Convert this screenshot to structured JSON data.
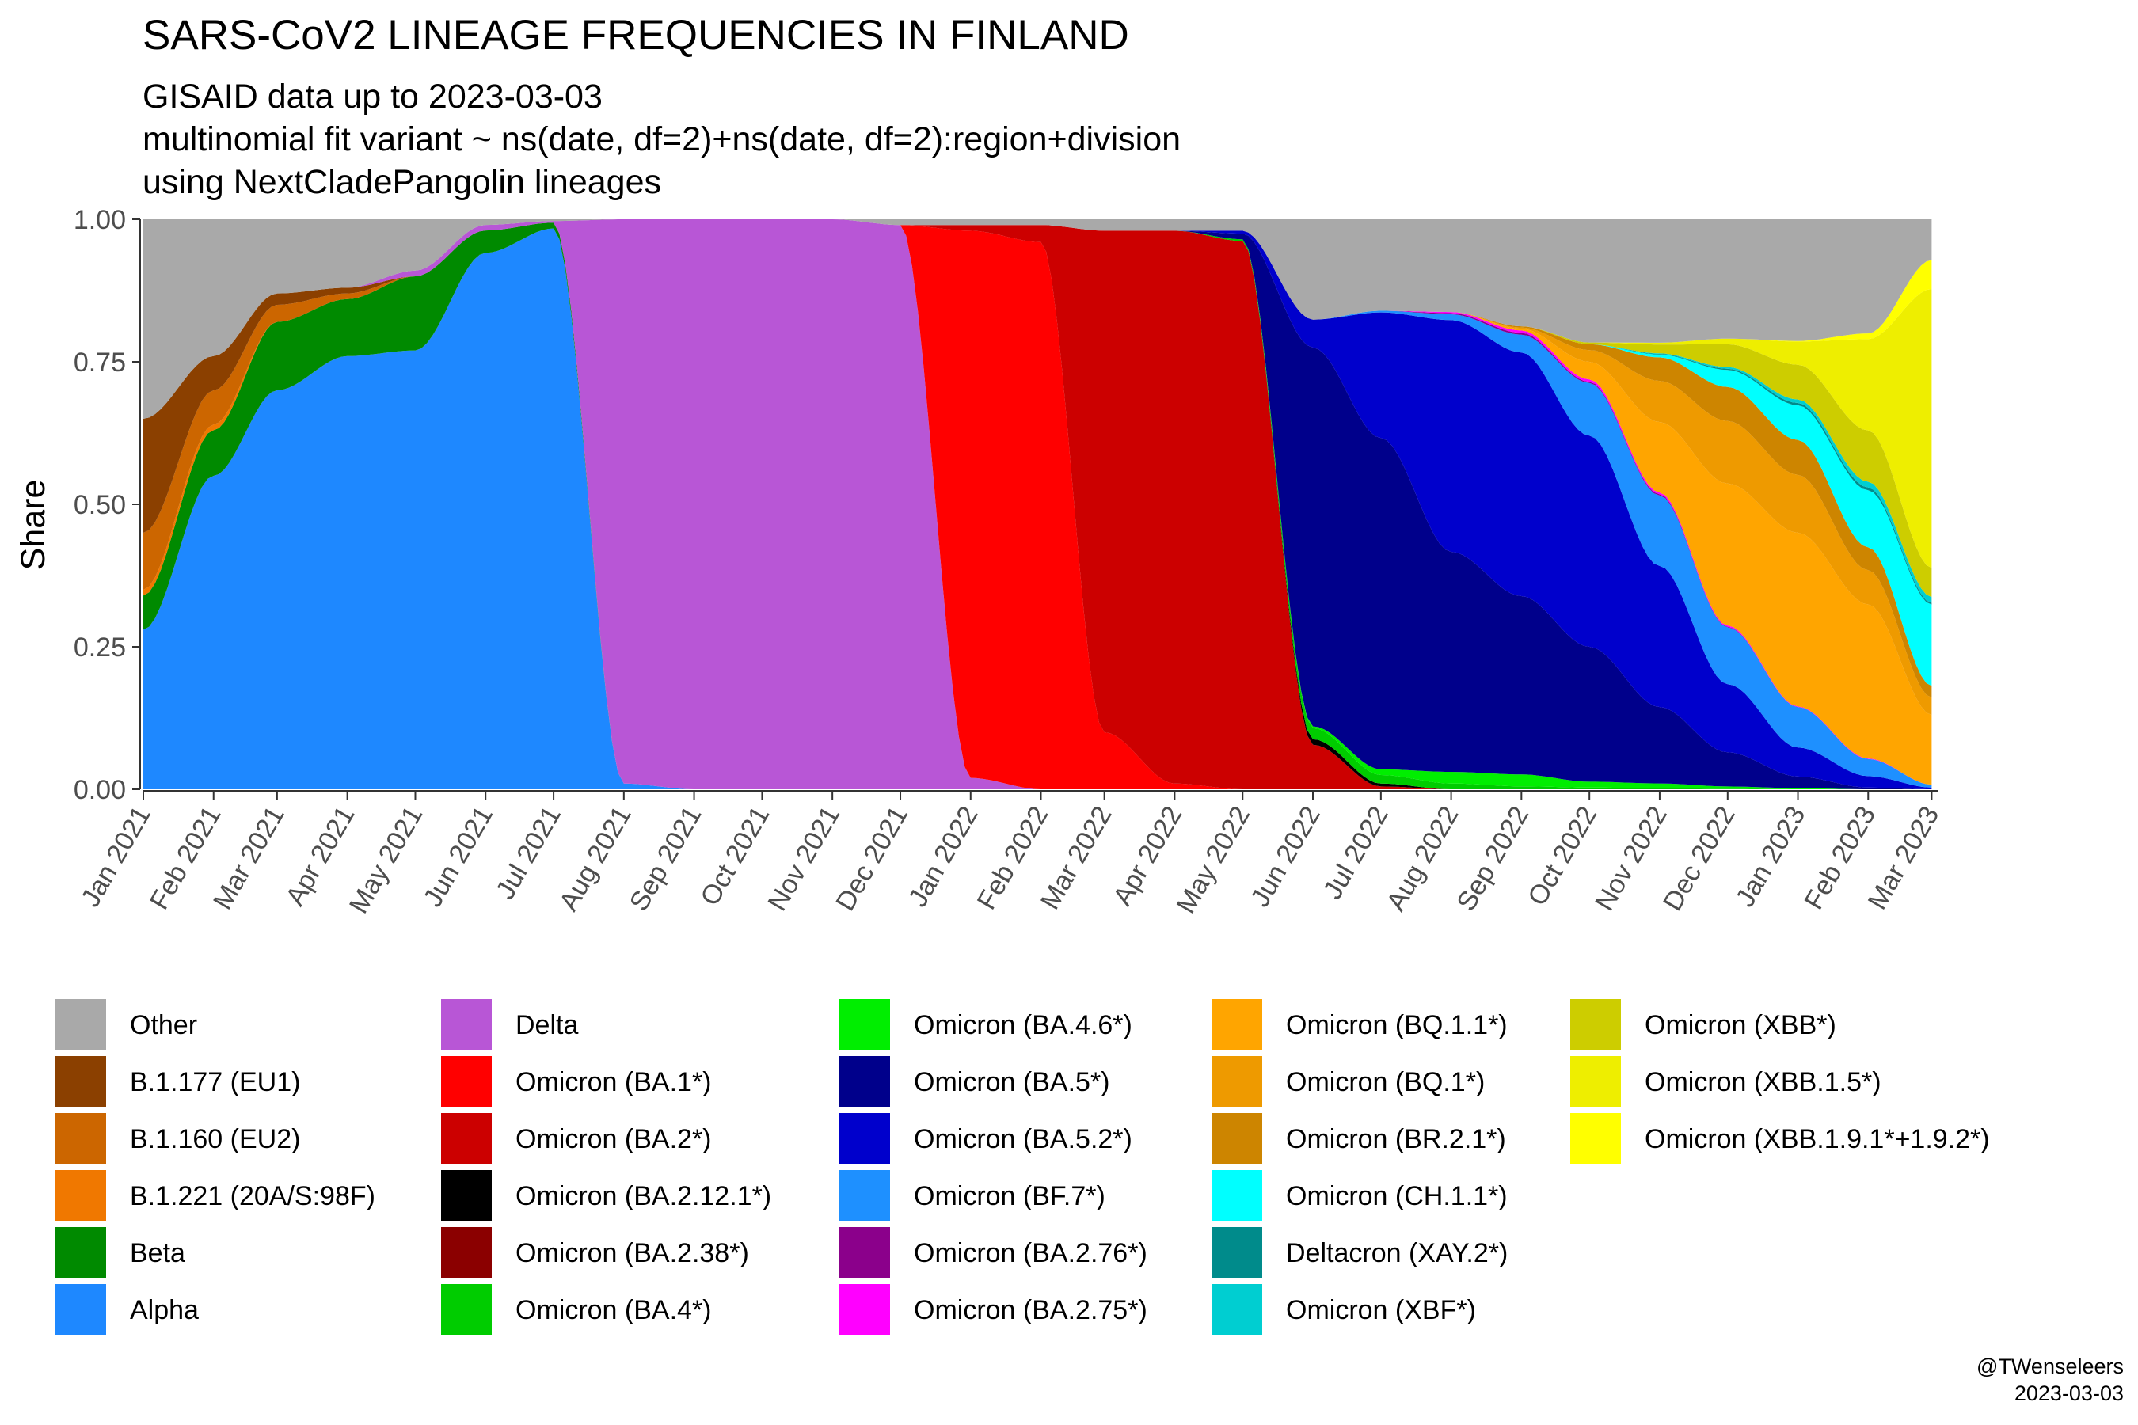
{
  "title": "SARS-CoV2 LINEAGE FREQUENCIES IN FINLAND",
  "subtitle": [
    "GISAID data up to 2023-03-03",
    "multinomial fit variant ~ ns(date, df=2)+ns(date, df=2):region+division",
    "using NextCladePangolin lineages"
  ],
  "caption": [
    "@TWenseleers",
    "2023-03-03"
  ],
  "chart_data": {
    "type": "area",
    "stacked": true,
    "ylabel": "Share",
    "xlabel": "",
    "ylim": [
      0,
      1
    ],
    "yticks": [
      "0.00",
      "0.25",
      "0.50",
      "0.75",
      "1.00"
    ],
    "xlim": [
      "2021-01-01",
      "2023-03-04"
    ],
    "xticks": [
      {
        "date": "2021-01-01",
        "label": "Jan 2021"
      },
      {
        "date": "2021-02-01",
        "label": "Feb 2021"
      },
      {
        "date": "2021-03-01",
        "label": "Mar 2021"
      },
      {
        "date": "2021-04-01",
        "label": "Apr 2021"
      },
      {
        "date": "2021-05-01",
        "label": "May 2021"
      },
      {
        "date": "2021-06-01",
        "label": "Jun 2021"
      },
      {
        "date": "2021-07-01",
        "label": "Jul 2021"
      },
      {
        "date": "2021-08-01",
        "label": "Aug 2021"
      },
      {
        "date": "2021-09-01",
        "label": "Sep 2021"
      },
      {
        "date": "2021-10-01",
        "label": "Oct 2021"
      },
      {
        "date": "2021-11-01",
        "label": "Nov 2021"
      },
      {
        "date": "2021-12-01",
        "label": "Dec 2021"
      },
      {
        "date": "2022-01-01",
        "label": "Jan 2022"
      },
      {
        "date": "2022-02-01",
        "label": "Feb 2022"
      },
      {
        "date": "2022-03-01",
        "label": "Mar 2022"
      },
      {
        "date": "2022-04-01",
        "label": "Apr 2022"
      },
      {
        "date": "2022-05-01",
        "label": "May 2022"
      },
      {
        "date": "2022-06-01",
        "label": "Jun 2022"
      },
      {
        "date": "2022-07-01",
        "label": "Jul 2022"
      },
      {
        "date": "2022-08-01",
        "label": "Aug 2022"
      },
      {
        "date": "2022-09-01",
        "label": "Sep 2022"
      },
      {
        "date": "2022-10-01",
        "label": "Oct 2022"
      },
      {
        "date": "2022-11-01",
        "label": "Nov 2022"
      },
      {
        "date": "2022-12-01",
        "label": "Dec 2022"
      },
      {
        "date": "2023-01-01",
        "label": "Jan 2023"
      },
      {
        "date": "2023-02-01",
        "label": "Feb 2023"
      },
      {
        "date": "2023-03-01",
        "label": "Mar 2023"
      }
    ],
    "x": [
      "2021-01-01",
      "2021-02-01",
      "2021-03-01",
      "2021-04-01",
      "2021-05-01",
      "2021-06-01",
      "2021-07-01",
      "2021-08-01",
      "2021-09-01",
      "2021-10-01",
      "2021-11-01",
      "2021-12-01",
      "2022-01-01",
      "2022-02-01",
      "2022-03-01",
      "2022-04-01",
      "2022-05-01",
      "2022-06-01",
      "2022-07-01",
      "2022-08-01",
      "2022-09-01",
      "2022-10-01",
      "2022-11-01",
      "2022-12-01",
      "2023-01-01",
      "2023-02-01",
      "2023-03-01"
    ],
    "series": [
      {
        "name": "Alpha",
        "color": "#1E88FF",
        "values": [
          0.28,
          0.55,
          0.7,
          0.76,
          0.77,
          0.96,
          0.99,
          0.01,
          0,
          0,
          0,
          0,
          0,
          0,
          0,
          0,
          0,
          0,
          0,
          0,
          0,
          0,
          0,
          0,
          0,
          0,
          0
        ]
      },
      {
        "name": "Beta",
        "color": "#008A00",
        "values": [
          0.06,
          0.08,
          0.12,
          0.1,
          0.13,
          0.04,
          0.01,
          0,
          0,
          0,
          0,
          0,
          0,
          0,
          0,
          0,
          0,
          0,
          0,
          0,
          0,
          0,
          0,
          0,
          0,
          0,
          0
        ]
      },
      {
        "name": "B.1.221 (20A/S:98F)",
        "color": "#F07800",
        "values": [
          0.01,
          0.01,
          0,
          0,
          0,
          0,
          0,
          0,
          0,
          0,
          0,
          0,
          0,
          0,
          0,
          0,
          0,
          0,
          0,
          0,
          0,
          0,
          0,
          0,
          0,
          0,
          0
        ]
      },
      {
        "name": "B.1.160 (EU2)",
        "color": "#CC6600",
        "values": [
          0.1,
          0.06,
          0.03,
          0.01,
          0,
          0,
          0,
          0,
          0,
          0,
          0,
          0,
          0,
          0,
          0,
          0,
          0,
          0,
          0,
          0,
          0,
          0,
          0,
          0,
          0,
          0,
          0
        ]
      },
      {
        "name": "B.1.177 (EU1)",
        "color": "#8B4000",
        "values": [
          0.2,
          0.06,
          0.02,
          0.01,
          0,
          0,
          0,
          0,
          0,
          0,
          0,
          0,
          0,
          0,
          0,
          0,
          0,
          0,
          0,
          0,
          0,
          0,
          0,
          0,
          0,
          0,
          0
        ]
      },
      {
        "name": "Delta",
        "color": "#B856D6",
        "values": [
          0,
          0,
          0,
          0,
          0.01,
          0.01,
          0.003,
          0.99,
          1.0,
          1.0,
          1.0,
          0.99,
          0.02,
          0,
          0,
          0,
          0,
          0,
          0,
          0,
          0,
          0,
          0,
          0,
          0,
          0,
          0
        ]
      },
      {
        "name": "Omicron (BA.1*)",
        "color": "#FF0000",
        "values": [
          0,
          0,
          0,
          0,
          0,
          0,
          0,
          0,
          0,
          0,
          0,
          0,
          0.96,
          0.96,
          0.1,
          0.01,
          0,
          0,
          0,
          0,
          0,
          0,
          0,
          0,
          0,
          0,
          0
        ]
      },
      {
        "name": "Omicron (BA.2*)",
        "color": "#CC0000",
        "values": [
          0,
          0,
          0,
          0,
          0,
          0,
          0,
          0,
          0,
          0,
          0,
          0,
          0.01,
          0.03,
          0.88,
          0.97,
          0.96,
          0.08,
          0.005,
          0,
          0,
          0,
          0,
          0,
          0,
          0,
          0
        ]
      },
      {
        "name": "Omicron (BA.2.12.1*)",
        "color": "#000000",
        "values": [
          0,
          0,
          0,
          0,
          0,
          0,
          0,
          0,
          0,
          0,
          0,
          0,
          0,
          0,
          0,
          0,
          0,
          0.01,
          0.005,
          0,
          0,
          0,
          0,
          0,
          0,
          0,
          0
        ]
      },
      {
        "name": "Omicron (BA.4*)",
        "color": "#00CC00",
        "values": [
          0,
          0,
          0,
          0,
          0,
          0,
          0,
          0,
          0,
          0,
          0,
          0,
          0,
          0,
          0,
          0,
          0.003,
          0.02,
          0.015,
          0.01,
          0.005,
          0.003,
          0.002,
          0.001,
          0,
          0,
          0
        ]
      },
      {
        "name": "Omicron (BA.4.6*)",
        "color": "#00EE00",
        "values": [
          0,
          0,
          0,
          0,
          0,
          0,
          0,
          0,
          0,
          0,
          0,
          0,
          0,
          0,
          0,
          0,
          0,
          0.003,
          0.01,
          0.02,
          0.02,
          0.01,
          0.008,
          0.004,
          0.002,
          0,
          0
        ]
      },
      {
        "name": "Omicron (BA.5*)",
        "color": "#00008B",
        "values": [
          0,
          0,
          0,
          0,
          0,
          0,
          0,
          0,
          0,
          0,
          0,
          0,
          0,
          0,
          0,
          0,
          0.01,
          0.68,
          0.58,
          0.38,
          0.3,
          0.23,
          0.13,
          0.06,
          0.02,
          0.003,
          0
        ]
      },
      {
        "name": "Omicron (BA.5.2*)",
        "color": "#0000CC",
        "values": [
          0,
          0,
          0,
          0,
          0,
          0,
          0,
          0,
          0,
          0,
          0,
          0,
          0,
          0,
          0,
          0,
          0.005,
          0.05,
          0.22,
          0.4,
          0.41,
          0.36,
          0.24,
          0.12,
          0.05,
          0.02,
          0.003
        ]
      },
      {
        "name": "Omicron (BF.7*)",
        "color": "#1E90FF",
        "values": [
          0,
          0,
          0,
          0,
          0,
          0,
          0,
          0,
          0,
          0,
          0,
          0,
          0,
          0,
          0,
          0,
          0,
          0,
          0.003,
          0.01,
          0.03,
          0.09,
          0.12,
          0.1,
          0.07,
          0.03,
          0.005
        ]
      },
      {
        "name": "Omicron (BA.2.76*)",
        "color": "#8B008B",
        "values": [
          0,
          0,
          0,
          0,
          0,
          0,
          0,
          0,
          0,
          0,
          0,
          0,
          0,
          0,
          0,
          0,
          0,
          0,
          0,
          0.002,
          0.003,
          0.002,
          0.002,
          0.001,
          0,
          0,
          0
        ]
      },
      {
        "name": "Omicron (BA.2.75*)",
        "color": "#FF00FF",
        "values": [
          0,
          0,
          0,
          0,
          0,
          0,
          0,
          0,
          0,
          0,
          0,
          0,
          0,
          0,
          0,
          0,
          0,
          0,
          0,
          0.002,
          0.004,
          0.004,
          0.003,
          0.002,
          0.001,
          0.001,
          0
        ]
      },
      {
        "name": "Omicron (BQ.1.1*)",
        "color": "#FFA500",
        "values": [
          0,
          0,
          0,
          0,
          0,
          0,
          0,
          0,
          0,
          0,
          0,
          0,
          0,
          0,
          0,
          0,
          0,
          0,
          0,
          0,
          0.003,
          0.03,
          0.12,
          0.25,
          0.3,
          0.27,
          0.12
        ]
      },
      {
        "name": "Omicron (BQ.1*)",
        "color": "#EE9A00",
        "values": [
          0,
          0,
          0,
          0,
          0,
          0,
          0,
          0,
          0,
          0,
          0,
          0,
          0,
          0,
          0,
          0,
          0,
          0,
          0,
          0,
          0.002,
          0.02,
          0.07,
          0.11,
          0.1,
          0.06,
          0.03
        ]
      },
      {
        "name": "Omicron (BR.2.1*)",
        "color": "#CD8500",
        "values": [
          0,
          0,
          0,
          0,
          0,
          0,
          0,
          0,
          0,
          0,
          0,
          0,
          0,
          0,
          0,
          0,
          0,
          0,
          0,
          0,
          0.002,
          0.01,
          0.04,
          0.06,
          0.06,
          0.04,
          0.02
        ]
      },
      {
        "name": "Omicron (CH.1.1*)",
        "color": "#00FFFF",
        "values": [
          0,
          0,
          0,
          0,
          0,
          0,
          0,
          0,
          0,
          0,
          0,
          0,
          0,
          0,
          0,
          0,
          0,
          0,
          0,
          0,
          0,
          0,
          0.005,
          0.03,
          0.06,
          0.1,
          0.14
        ]
      },
      {
        "name": "Deltacron (XAY.2*)",
        "color": "#008B8B",
        "values": [
          0,
          0,
          0,
          0,
          0,
          0,
          0,
          0,
          0,
          0,
          0,
          0,
          0,
          0,
          0,
          0,
          0,
          0,
          0,
          0,
          0,
          0,
          0.001,
          0.002,
          0.004,
          0.005,
          0.003
        ]
      },
      {
        "name": "Omicron (XBF*)",
        "color": "#00CED1",
        "values": [
          0,
          0,
          0,
          0,
          0,
          0,
          0,
          0,
          0,
          0,
          0,
          0,
          0,
          0,
          0,
          0,
          0,
          0,
          0,
          0,
          0,
          0,
          0.001,
          0.003,
          0.006,
          0.01,
          0.01
        ]
      },
      {
        "name": "Omicron (XBB*)",
        "color": "#CDCD00",
        "values": [
          0,
          0,
          0,
          0,
          0,
          0,
          0,
          0,
          0,
          0,
          0,
          0,
          0,
          0,
          0,
          0,
          0,
          0,
          0,
          0,
          0,
          0.003,
          0.015,
          0.04,
          0.06,
          0.09,
          0.05
        ]
      },
      {
        "name": "Omicron (XBB.1.5*)",
        "color": "#EEEE00",
        "values": [
          0,
          0,
          0,
          0,
          0,
          0,
          0,
          0,
          0,
          0,
          0,
          0,
          0,
          0,
          0,
          0,
          0,
          0,
          0,
          0,
          0,
          0,
          0.003,
          0.01,
          0.04,
          0.16,
          0.48
        ]
      },
      {
        "name": "Omicron (XBB.1.9.1*+1.9.2*)",
        "color": "#FFFF00",
        "values": [
          0,
          0,
          0,
          0,
          0,
          0,
          0,
          0,
          0,
          0,
          0,
          0,
          0,
          0,
          0,
          0,
          0,
          0,
          0,
          0,
          0,
          0,
          0,
          0,
          0.001,
          0.01,
          0.05
        ]
      },
      {
        "name": "Other",
        "color": "#A9A9A9",
        "values": [
          0.35,
          0.24,
          0.13,
          0.12,
          0.09,
          0.01,
          0.003,
          0,
          0,
          0,
          0,
          0.01,
          0.01,
          0.01,
          0.02,
          0.02,
          0.02,
          0.18,
          0.16,
          0.16,
          0.18,
          0.21,
          0.21,
          0.21,
          0.21,
          0.2,
          0.07
        ]
      }
    ],
    "legend": {
      "position": "bottom",
      "columns": [
        [
          "Other",
          "B.1.177 (EU1)",
          "B.1.160 (EU2)",
          "B.1.221 (20A/S:98F)",
          "Beta",
          "Alpha"
        ],
        [
          "Delta",
          "Omicron (BA.1*)",
          "Omicron (BA.2*)",
          "Omicron (BA.2.12.1*)",
          "Omicron (BA.2.38*)",
          "Omicron (BA.4*)"
        ],
        [
          "Omicron (BA.4.6*)",
          "Omicron (BA.5*)",
          "Omicron (BA.5.2*)",
          "Omicron (BF.7*)",
          "Omicron (BA.2.76*)",
          "Omicron (BA.2.75*)"
        ],
        [
          "Omicron (BQ.1.1*)",
          "Omicron (BQ.1*)",
          "Omicron (BR.2.1*)",
          "Omicron (CH.1.1*)",
          "Deltacron (XAY.2*)",
          "Omicron (XBF*)"
        ],
        [
          "Omicron (XBB*)",
          "Omicron (XBB.1.5*)",
          "Omicron (XBB.1.9.1*+1.9.2*)"
        ]
      ],
      "colors": {
        "Other": "#A9A9A9",
        "B.1.177 (EU1)": "#8B4000",
        "B.1.160 (EU2)": "#CC6600",
        "B.1.221 (20A/S:98F)": "#F07800",
        "Beta": "#008A00",
        "Alpha": "#1E88FF",
        "Delta": "#B856D6",
        "Omicron (BA.1*)": "#FF0000",
        "Omicron (BA.2*)": "#CC0000",
        "Omicron (BA.2.12.1*)": "#000000",
        "Omicron (BA.2.38*)": "#8B0000",
        "Omicron (BA.4*)": "#00CC00",
        "Omicron (BA.4.6*)": "#00EE00",
        "Omicron (BA.5*)": "#00008B",
        "Omicron (BA.5.2*)": "#0000CC",
        "Omicron (BF.7*)": "#1E90FF",
        "Omicron (BA.2.76*)": "#8B008B",
        "Omicron (BA.2.75*)": "#FF00FF",
        "Omicron (BQ.1.1*)": "#FFA500",
        "Omicron (BQ.1*)": "#EE9A00",
        "Omicron (BR.2.1*)": "#CD8500",
        "Omicron (CH.1.1*)": "#00FFFF",
        "Deltacron (XAY.2*)": "#008B8B",
        "Omicron (XBF*)": "#00CED1",
        "Omicron (XBB*)": "#CDCD00",
        "Omicron (XBB.1.5*)": "#EEEE00",
        "Omicron (XBB.1.9.1*+1.9.2*)": "#FFFF00"
      }
    }
  }
}
